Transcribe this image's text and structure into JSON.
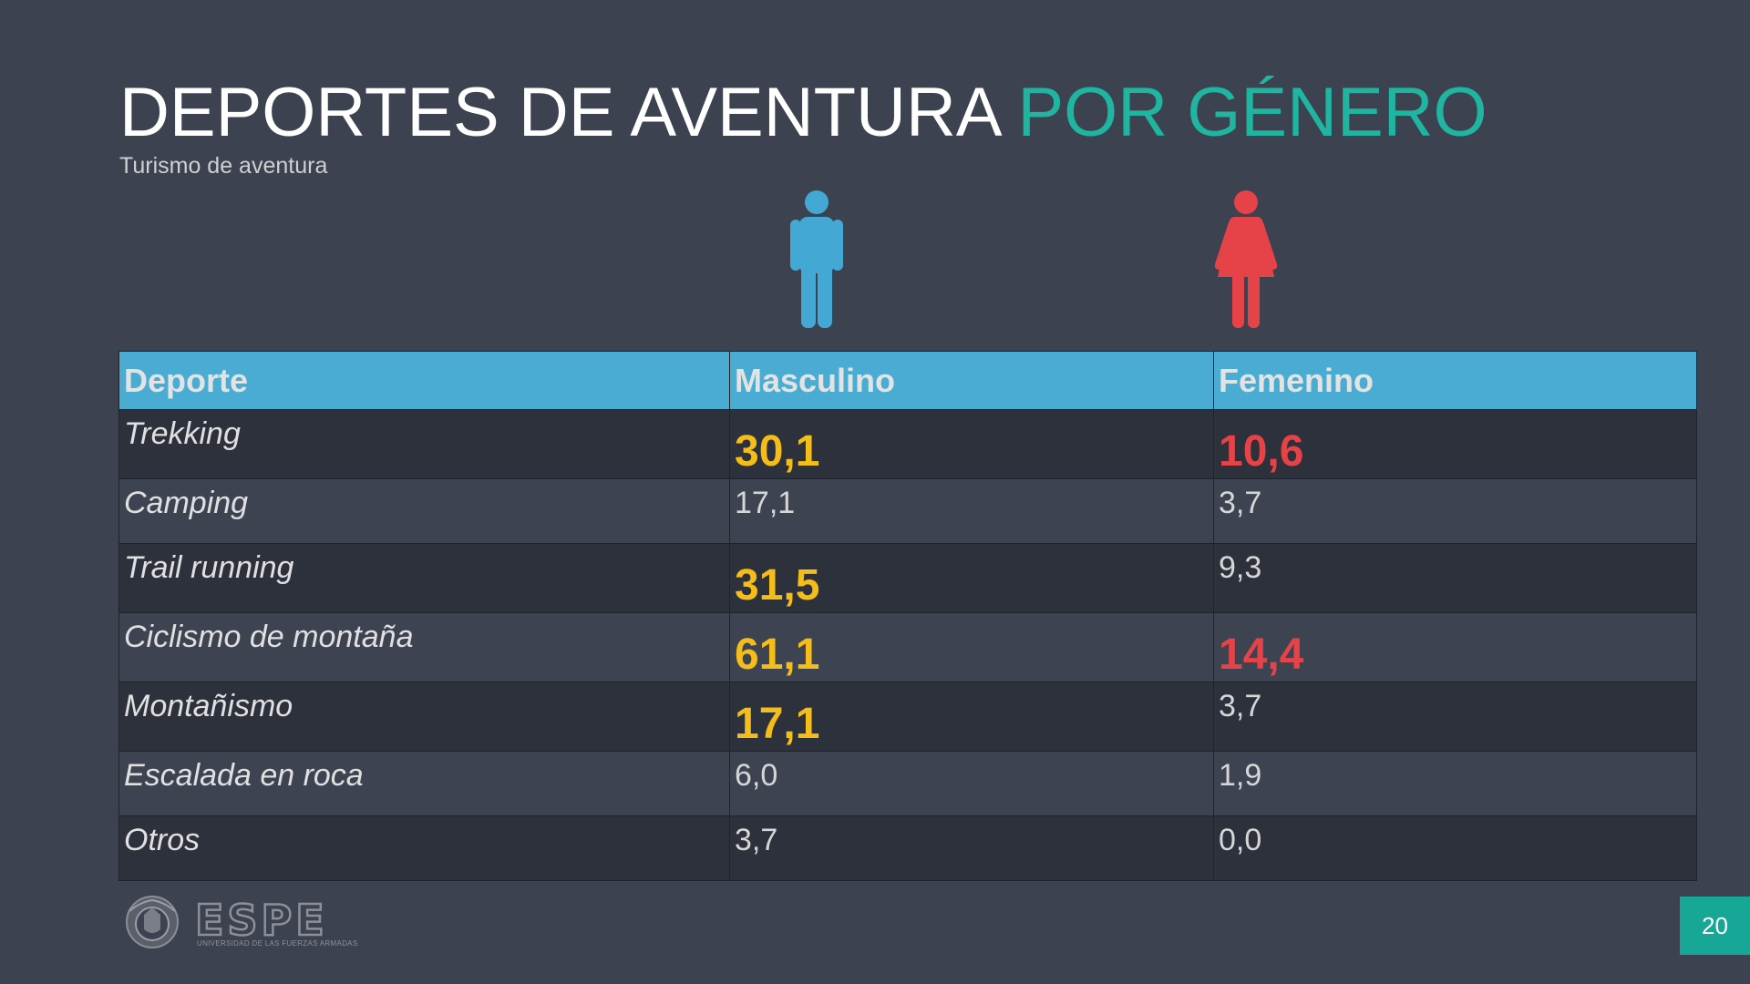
{
  "title": {
    "main": "DEPORTES DE AVENTURA ",
    "accent": "POR GÉNERO"
  },
  "subtitle": "Turismo de aventura",
  "icons": {
    "male": "male-person-icon",
    "female": "female-person-icon"
  },
  "colors": {
    "background": "#3c4250",
    "accent_teal": "#1fb5a0",
    "header_blue": "#4bacd3",
    "male_blue": "#44a8d4",
    "female_red": "#e64348",
    "highlight_yellow": "#f4bd1a"
  },
  "table": {
    "headers": [
      "Deporte",
      "Masculino",
      "Femenino"
    ],
    "rows": [
      {
        "sport": "Trekking",
        "masculino": "30,1",
        "femenino": "10,6",
        "masculino_highlight": "yellow",
        "femenino_highlight": "red"
      },
      {
        "sport": "Camping",
        "masculino": "17,1",
        "femenino": "3,7",
        "masculino_highlight": "",
        "femenino_highlight": ""
      },
      {
        "sport": "Trail running",
        "masculino": "31,5",
        "femenino": "9,3",
        "masculino_highlight": "yellow",
        "femenino_highlight": ""
      },
      {
        "sport": "Ciclismo de montaña",
        "masculino": "61,1",
        "femenino": "14,4",
        "masculino_highlight": "yellow",
        "femenino_highlight": "red"
      },
      {
        "sport": "Montañismo",
        "masculino": "17,1",
        "femenino": "3,7",
        "masculino_highlight": "yellow",
        "femenino_highlight": ""
      },
      {
        "sport": "Escalada en roca",
        "masculino": "6,0",
        "femenino": "1,9",
        "masculino_highlight": "",
        "femenino_highlight": ""
      },
      {
        "sport": "Otros",
        "masculino": "3,7",
        "femenino": "0,0",
        "masculino_highlight": "",
        "femenino_highlight": ""
      }
    ]
  },
  "logo": {
    "wordmark": "ESPE",
    "caption": "UNIVERSIDAD DE LAS FUERZAS ARMADAS"
  },
  "page_number": "20"
}
